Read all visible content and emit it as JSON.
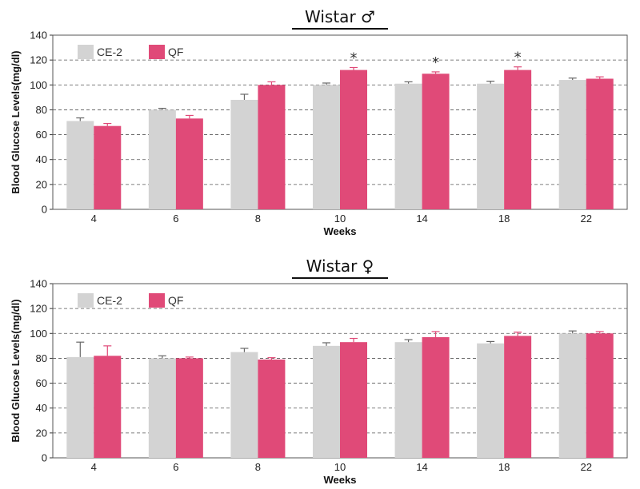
{
  "chart_data": [
    {
      "type": "bar",
      "title": "Wistar ♂",
      "xlabel": "Weeks",
      "ylabel": "Blood Glucose Levels(mg/dl)",
      "ylim": [
        0,
        140
      ],
      "yticks": [
        0,
        20,
        40,
        60,
        80,
        100,
        120,
        140
      ],
      "grid": true,
      "legend_position": "top-left",
      "categories": [
        "4",
        "6",
        "8",
        "10",
        "14",
        "18",
        "22"
      ],
      "series": [
        {
          "name": "CE-2",
          "color": "#d3d3d3",
          "errorColor": "#666666",
          "values": [
            71,
            80,
            88,
            100,
            101,
            101,
            104
          ],
          "errors": [
            2.5,
            1.2,
            4.5,
            1.5,
            1.5,
            2,
            1.5
          ]
        },
        {
          "name": "QF",
          "color": "#e04a78",
          "errorColor": "#e04a78",
          "values": [
            67,
            73,
            100,
            112,
            109,
            112,
            105
          ],
          "errors": [
            2,
            2.5,
            2.5,
            2,
            1.5,
            2.5,
            1.5
          ]
        }
      ],
      "annotations": [
        {
          "category": "10",
          "text": "*"
        },
        {
          "category": "14",
          "text": "*"
        },
        {
          "category": "18",
          "text": "*"
        }
      ]
    },
    {
      "type": "bar",
      "title": "Wistar ♀",
      "xlabel": "Weeks",
      "ylabel": "Blood Glucose Levels(mg/dl)",
      "ylim": [
        0,
        140
      ],
      "yticks": [
        0,
        20,
        40,
        60,
        80,
        100,
        120,
        140
      ],
      "grid": true,
      "legend_position": "top-left",
      "categories": [
        "4",
        "6",
        "8",
        "10",
        "14",
        "18",
        "22"
      ],
      "series": [
        {
          "name": "CE-2",
          "color": "#d3d3d3",
          "errorColor": "#666666",
          "values": [
            81,
            80,
            85,
            90,
            93,
            92,
            100
          ],
          "errors": [
            12,
            2,
            3,
            2.5,
            2,
            1.5,
            2
          ]
        },
        {
          "name": "QF",
          "color": "#e04a78",
          "errorColor": "#e04a78",
          "values": [
            82,
            80,
            79,
            93,
            97,
            98,
            100
          ],
          "errors": [
            8,
            1,
            1.5,
            3,
            4.5,
            3,
            1.5
          ]
        }
      ],
      "annotations": []
    }
  ]
}
